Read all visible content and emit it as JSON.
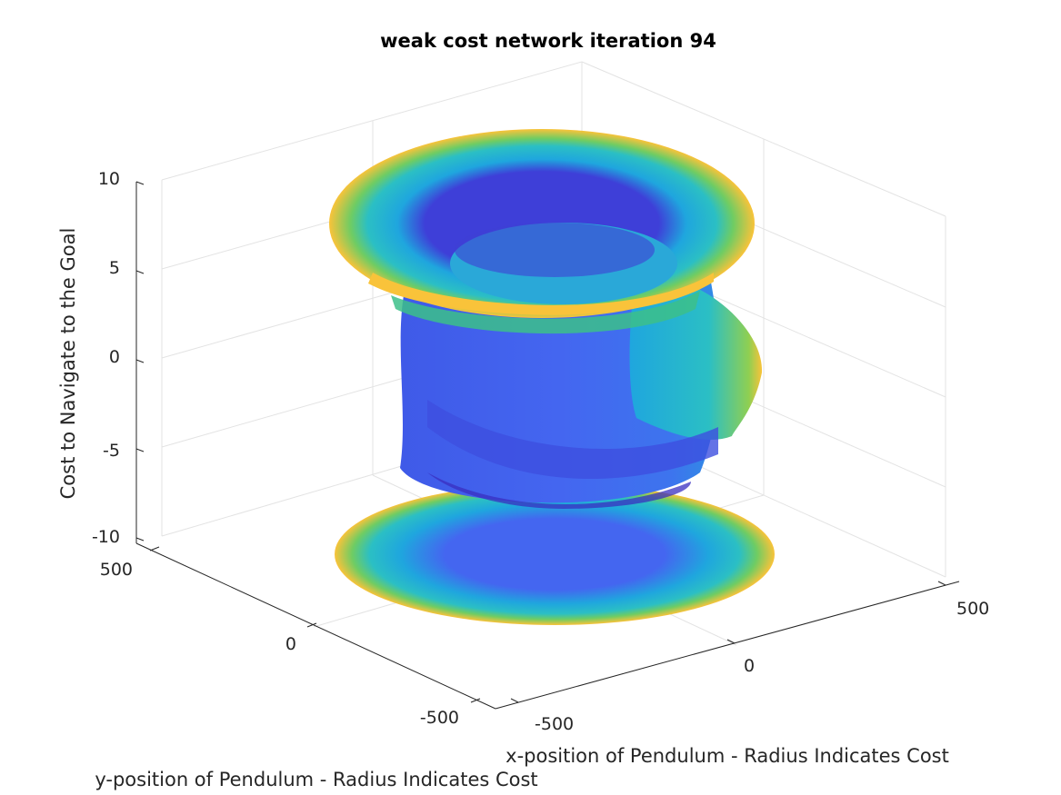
{
  "chart_data": {
    "type": "surface",
    "title": "weak cost network iteration 94",
    "xlabel": "x-position of Pendulum - Radius Indicates Cost",
    "ylabel": "y-position of Pendulum - Radius Indicates Cost",
    "zlabel": "Cost to Navigate to the Goal",
    "xlim": [
      -500,
      500
    ],
    "ylim": [
      -500,
      500
    ],
    "zlim": [
      -10,
      10
    ],
    "xticks": [
      "-500",
      "0",
      "500"
    ],
    "yticks": [
      "-500",
      "0",
      "500"
    ],
    "zticks": [
      "-10",
      "-5",
      "0",
      "5",
      "10"
    ],
    "grid": true,
    "colormap": "parula",
    "colors": {
      "low": "#3e26a8",
      "mid_low": "#4466f0",
      "mid": "#1fa6de",
      "mid_high": "#3cc08a",
      "high": "#f9c33a"
    }
  }
}
